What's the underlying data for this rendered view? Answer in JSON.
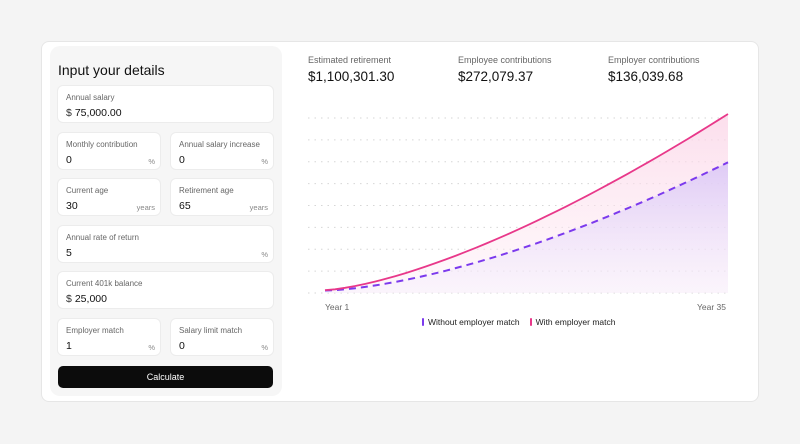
{
  "form": {
    "title": "Input your details",
    "fields": {
      "annual_salary": {
        "label": "Annual salary",
        "prefix": "$",
        "value": "75,000.00"
      },
      "monthly_contribution": {
        "label": "Monthly contribution",
        "value": "0",
        "suffix": "%"
      },
      "annual_salary_increase": {
        "label": "Annual salary increase",
        "value": "0",
        "suffix": "%"
      },
      "current_age": {
        "label": "Current age",
        "value": "30",
        "suffix": "years"
      },
      "retirement_age": {
        "label": "Retirement age",
        "value": "65",
        "suffix": "years"
      },
      "annual_rate_of_return": {
        "label": "Annual rate of return",
        "value": "5",
        "suffix": "%"
      },
      "current_401k_balance": {
        "label": "Current 401k balance",
        "prefix": "$",
        "value": "25,000"
      },
      "employer_match": {
        "label": "Employer match",
        "value": "1",
        "suffix": "%"
      },
      "salary_limit_match": {
        "label": "Salary limit match",
        "value": "0",
        "suffix": "%"
      }
    },
    "calculate_label": "Calculate"
  },
  "stats": [
    {
      "label": "Estimated retirement",
      "value": "$1,100,301.30"
    },
    {
      "label": "Employee contributions",
      "value": "$272,079.37"
    },
    {
      "label": "Employer contributions",
      "value": "$136,039.68"
    }
  ],
  "chart_data": {
    "type": "area",
    "x_start_label": "Year 1",
    "x_end_label": "Year 35",
    "grid": true,
    "gridlines": 9,
    "legend_position": "bottom",
    "series": [
      {
        "name": "Without employer match",
        "color": "#7c3aed",
        "style": "dashed",
        "start": 0.014,
        "end": 0.73,
        "curvature": 1.55
      },
      {
        "name": "With employer match",
        "color": "#e8388a",
        "style": "solid",
        "start": 0.016,
        "end": 1.0,
        "curvature": 1.45
      }
    ],
    "ylim": [
      0,
      1100301.3
    ]
  },
  "legend": [
    {
      "label": "Without employer match",
      "color": "#7c3aed"
    },
    {
      "label": "With employer match",
      "color": "#e8388a"
    }
  ]
}
